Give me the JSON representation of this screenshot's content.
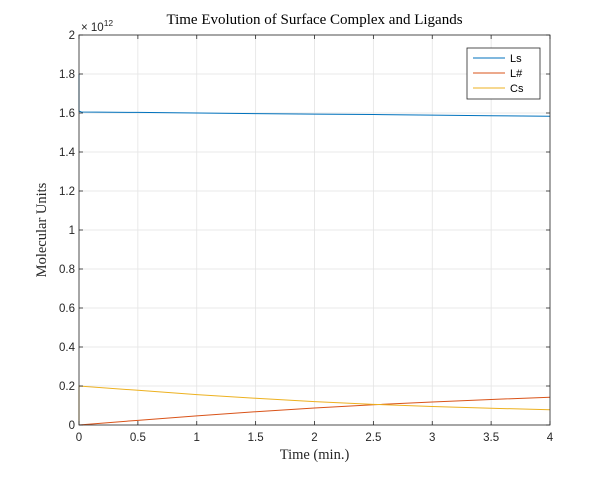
{
  "chart_data": {
    "type": "line",
    "title": "Time Evolution of Surface Complex and Ligands",
    "xlabel": "Time (min.)",
    "ylabel": "Molecular Units",
    "xlim": [
      0,
      4
    ],
    "ylim": [
      0,
      2
    ],
    "y_exponent_label": "× 10",
    "y_exponent_power": "12",
    "x_ticks": [
      0,
      0.5,
      1,
      1.5,
      2,
      2.5,
      3,
      3.5,
      4
    ],
    "x_tick_labels": [
      "0",
      "0.5",
      "1",
      "1.5",
      "2",
      "2.5",
      "3",
      "3.5",
      "4"
    ],
    "y_ticks": [
      0,
      0.2,
      0.4,
      0.6,
      0.8,
      1,
      1.2,
      1.4,
      1.6,
      1.8,
      2
    ],
    "y_tick_labels": [
      "0",
      "0.2",
      "0.4",
      "0.6",
      "0.8",
      "1",
      "1.2",
      "1.4",
      "1.6",
      "1.8",
      "2"
    ],
    "grid": true,
    "legend_position": "top-right",
    "series": [
      {
        "name": "Ls",
        "color": "#0072bd",
        "x": [
          0,
          0,
          0.02,
          0.5,
          1,
          1.5,
          2,
          2.5,
          3,
          3.5,
          4
        ],
        "y": [
          1.8,
          1.61,
          1.605,
          1.603,
          1.6,
          1.597,
          1.594,
          1.592,
          1.589,
          1.586,
          1.583
        ]
      },
      {
        "name": "L#",
        "color": "#d95319",
        "x": [
          0,
          0.5,
          1,
          1.5,
          2,
          2.5,
          3,
          3.5,
          4
        ],
        "y": [
          0,
          0.024,
          0.047,
          0.068,
          0.087,
          0.104,
          0.118,
          0.131,
          0.142
        ]
      },
      {
        "name": "Cs",
        "color": "#edb120",
        "x": [
          0,
          0,
          0.5,
          1,
          1.5,
          2,
          2.5,
          3,
          3.5,
          4
        ],
        "y": [
          0,
          0.2,
          0.178,
          0.156,
          0.137,
          0.12,
          0.106,
          0.095,
          0.086,
          0.078
        ]
      }
    ]
  }
}
